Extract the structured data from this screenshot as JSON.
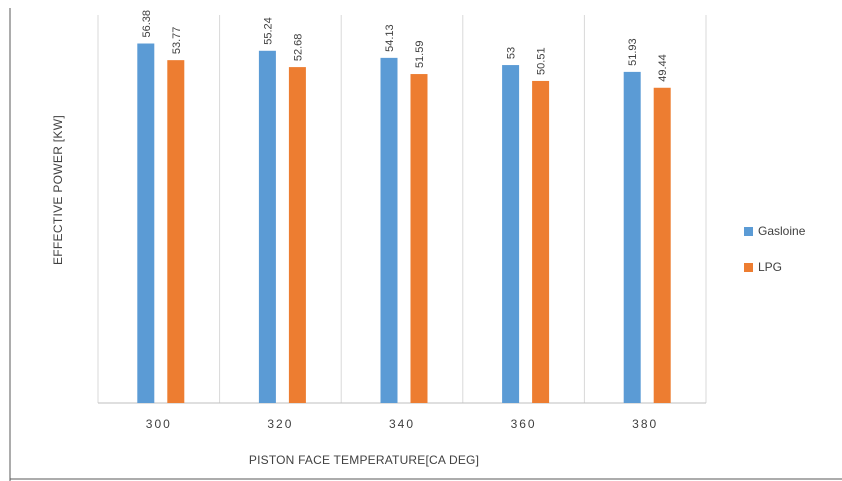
{
  "chart_data": {
    "type": "bar",
    "categories": [
      "300",
      "320",
      "340",
      "360",
      "380"
    ],
    "series": [
      {
        "name": "Gasloine",
        "color": "#5b9bd5",
        "values": [
          56.38,
          55.24,
          54.13,
          53,
          51.93
        ]
      },
      {
        "name": "LPG",
        "color": "#ed7d31",
        "values": [
          53.77,
          52.68,
          51.59,
          50.51,
          49.44
        ]
      }
    ],
    "data_labels": {
      "Gasloine": [
        "56.38",
        "55.24",
        "54.13",
        "53",
        "51.93"
      ],
      "LPG": [
        "53.77",
        "52.68",
        "51.59",
        "50.51",
        "49.44"
      ]
    },
    "xlabel": "PISTON FACE TEMPERATURE[CA DEG]",
    "ylabel": "EFFECTIVE POWER [KW]",
    "legend_position": "right",
    "grid": "vertical",
    "colors": {
      "gridline": "#d9d9d9",
      "axis": "#bfbfbf",
      "border": "#595959"
    }
  }
}
